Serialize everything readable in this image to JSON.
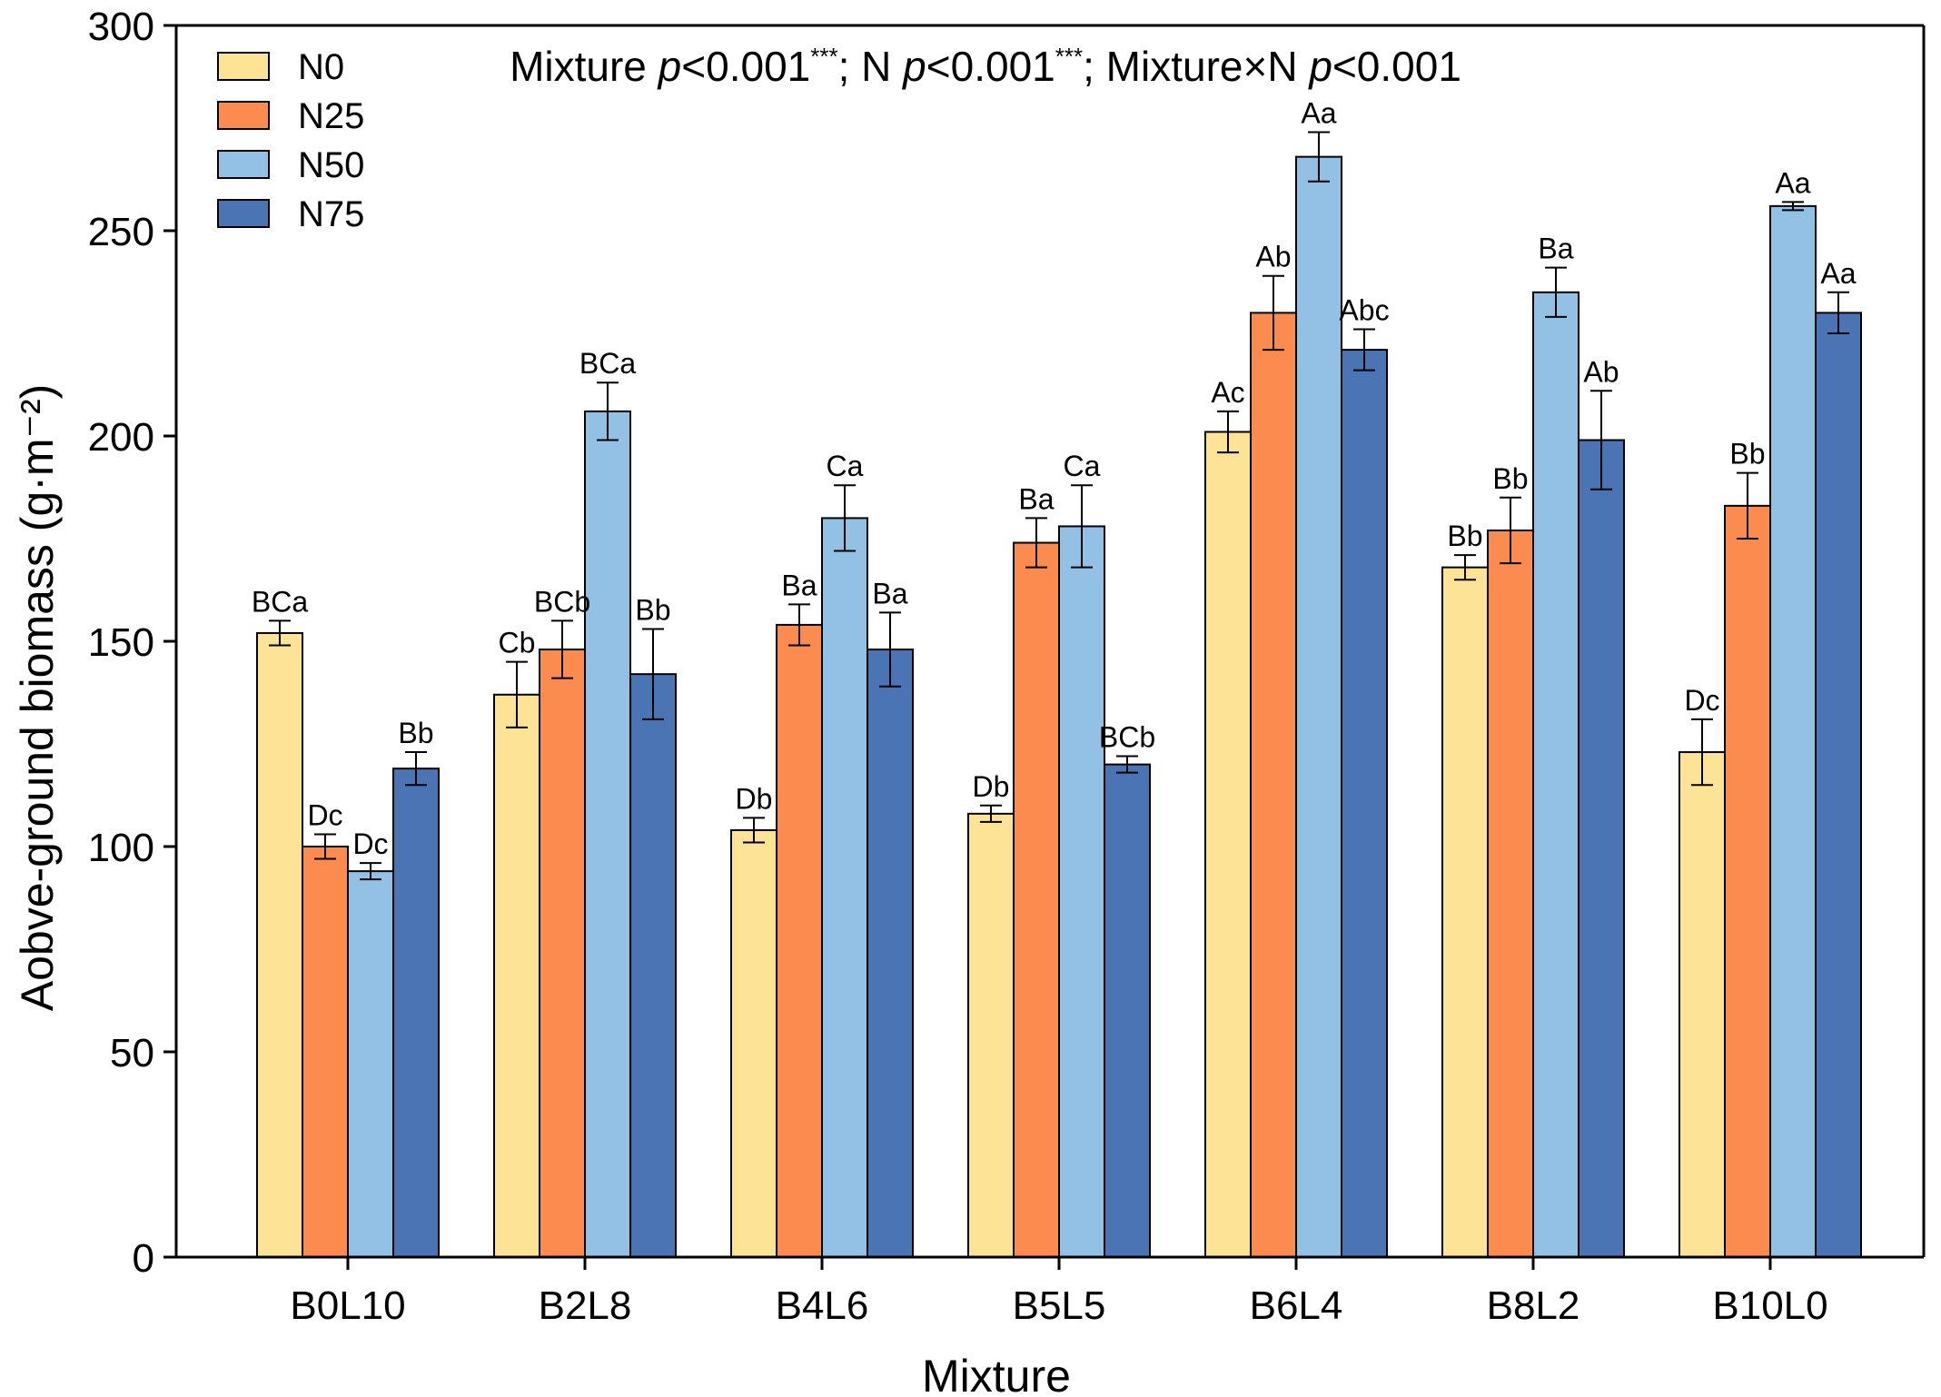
{
  "chart_data": {
    "type": "bar",
    "title": "",
    "annotation": {
      "parts": [
        {
          "text": "Mixture ",
          "style": "normal"
        },
        {
          "text": "p",
          "style": "italic"
        },
        {
          "text": "<0.001",
          "style": "normal"
        },
        {
          "text": "***",
          "style": "sup"
        },
        {
          "text": "; N ",
          "style": "normal"
        },
        {
          "text": "p",
          "style": "italic"
        },
        {
          "text": "<0.001",
          "style": "normal"
        },
        {
          "text": "***",
          "style": "sup"
        },
        {
          "text": "; Mixture×N  ",
          "style": "normal"
        },
        {
          "text": "p",
          "style": "italic"
        },
        {
          "text": "<0.001",
          "style": "normal"
        }
      ]
    },
    "xlabel": "Mixture",
    "ylabel": "Aobve-ground biomass (g·m⁻²)",
    "ylim": [
      0,
      300
    ],
    "yticks": [
      0,
      50,
      100,
      150,
      200,
      250,
      300
    ],
    "grid": false,
    "legend_position": "top-left",
    "categories": [
      "B0L10",
      "B2L8",
      "B4L6",
      "B5L5",
      "B6L4",
      "B8L2",
      "B10L0"
    ],
    "series": [
      {
        "name": "N0",
        "color": "#fde395",
        "values": [
          152,
          137,
          104,
          108,
          201,
          168,
          123
        ],
        "errors": [
          3,
          8,
          3,
          2,
          5,
          3,
          8
        ],
        "labels": [
          "BCa",
          "Cb",
          "Db",
          "Db",
          "Ac",
          "Bb",
          "Dc"
        ]
      },
      {
        "name": "N25",
        "color": "#fc8b4f",
        "values": [
          100,
          148,
          154,
          174,
          230,
          177,
          183
        ],
        "errors": [
          3,
          7,
          5,
          6,
          9,
          8,
          8
        ],
        "labels": [
          "Dc",
          "BCb",
          "Ba",
          "Ba",
          "Ab",
          "Bb",
          "Bb"
        ]
      },
      {
        "name": "N50",
        "color": "#93c1e5",
        "values": [
          94,
          206,
          180,
          178,
          268,
          235,
          256
        ],
        "errors": [
          2,
          7,
          8,
          10,
          6,
          6,
          1
        ],
        "labels": [
          "Dc",
          "BCa",
          "Ca",
          "Ca",
          "Aa",
          "Ba",
          "Aa"
        ]
      },
      {
        "name": "N75",
        "color": "#4a74b4",
        "values": [
          119,
          142,
          148,
          120,
          221,
          199,
          230
        ],
        "errors": [
          4,
          11,
          9,
          2,
          5,
          12,
          5
        ],
        "labels": [
          "Bb",
          "Bb",
          "Ba",
          "BCb",
          "Abc",
          "Ab",
          "Aa"
        ]
      }
    ]
  }
}
